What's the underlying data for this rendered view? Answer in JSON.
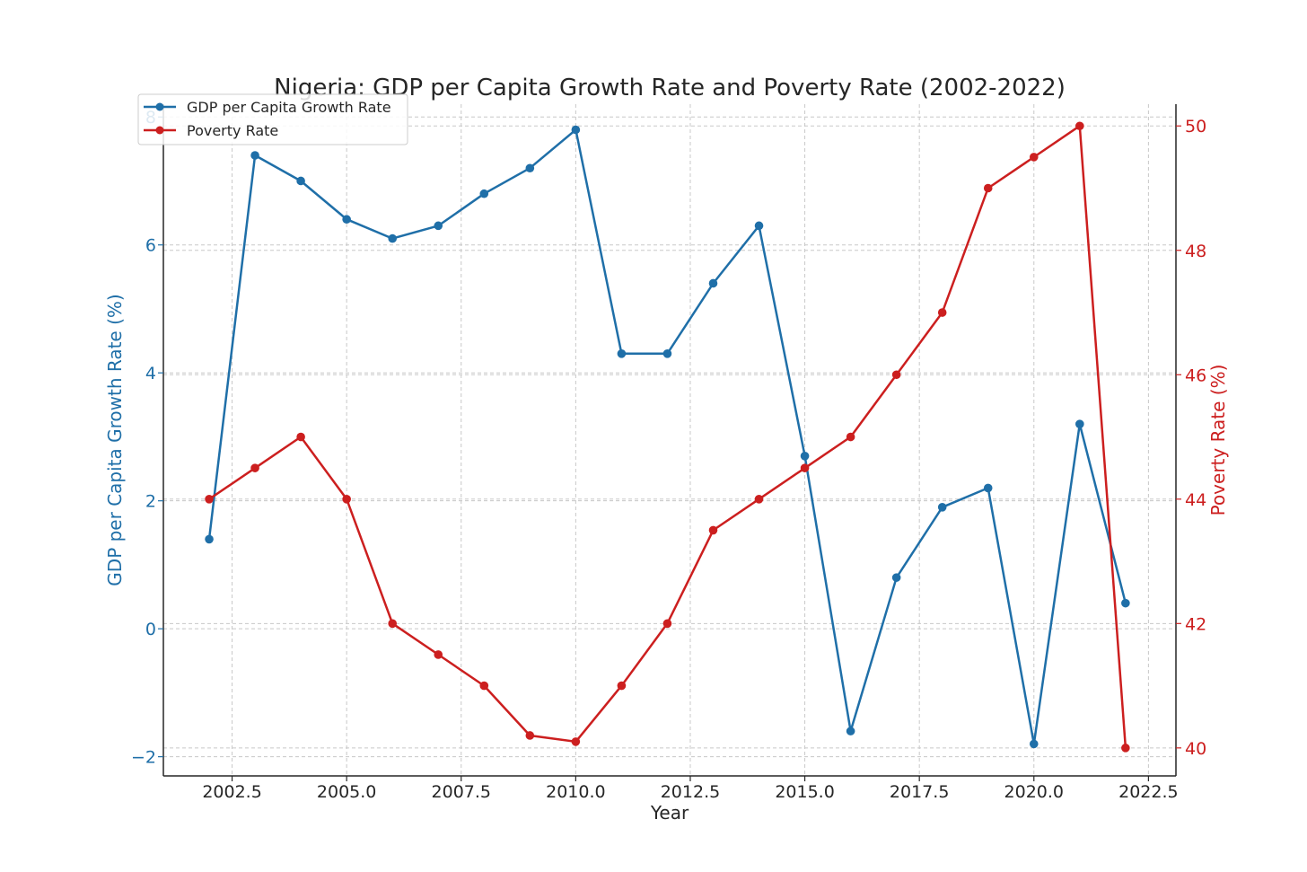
{
  "chart_data": {
    "type": "line",
    "title": "Nigeria: GDP per Capita Growth Rate and Poverty Rate (2002-2022)",
    "xlabel": "Year",
    "ylabel_left": "GDP per Capita Growth Rate (%)",
    "ylabel_right": "Poverty Rate (%)",
    "xlim": [
      2001,
      2023.1
    ],
    "ylim_left": [
      -2.3,
      8.2
    ],
    "ylim_right": [
      39.55,
      50.35
    ],
    "x_ticks": [
      2002.5,
      2005.0,
      2007.5,
      2010.0,
      2012.5,
      2015.0,
      2017.5,
      2020.0,
      2022.5
    ],
    "x_tick_labels": [
      "2002.5",
      "2005.0",
      "2007.5",
      "2010.0",
      "2012.5",
      "2015.0",
      "2017.5",
      "2020.0",
      "2022.5"
    ],
    "y_left_ticks": [
      -2,
      0,
      2,
      4,
      6,
      8
    ],
    "y_left_tick_labels": [
      "−2",
      "0",
      "2",
      "4",
      "6",
      "8"
    ],
    "y_right_ticks": [
      40,
      42,
      44,
      46,
      48,
      50
    ],
    "y_right_tick_labels": [
      "40",
      "42",
      "44",
      "46",
      "48",
      "50"
    ],
    "grid": true,
    "legend_position": "top-left",
    "x": [
      2002,
      2003,
      2004,
      2005,
      2006,
      2007,
      2008,
      2009,
      2010,
      2011,
      2012,
      2013,
      2014,
      2015,
      2016,
      2017,
      2018,
      2019,
      2020,
      2021,
      2022
    ],
    "series": [
      {
        "name": "GDP per Capita Growth Rate",
        "axis": "left",
        "color": "#1f6fa8",
        "values": [
          1.4,
          7.4,
          7.0,
          6.4,
          6.1,
          6.3,
          6.8,
          7.2,
          7.8,
          4.3,
          4.3,
          5.4,
          6.3,
          2.7,
          -1.6,
          0.8,
          1.9,
          2.2,
          -1.8,
          3.2,
          0.4
        ]
      },
      {
        "name": "Poverty Rate",
        "axis": "right",
        "color": "#cc1f1f",
        "values": [
          44.0,
          44.5,
          45.0,
          44.0,
          42.0,
          41.5,
          41.0,
          40.2,
          40.1,
          41.0,
          42.0,
          43.5,
          44.0,
          44.5,
          45.0,
          46.0,
          47.0,
          49.0,
          49.5,
          50.0,
          40.0
        ]
      }
    ]
  }
}
